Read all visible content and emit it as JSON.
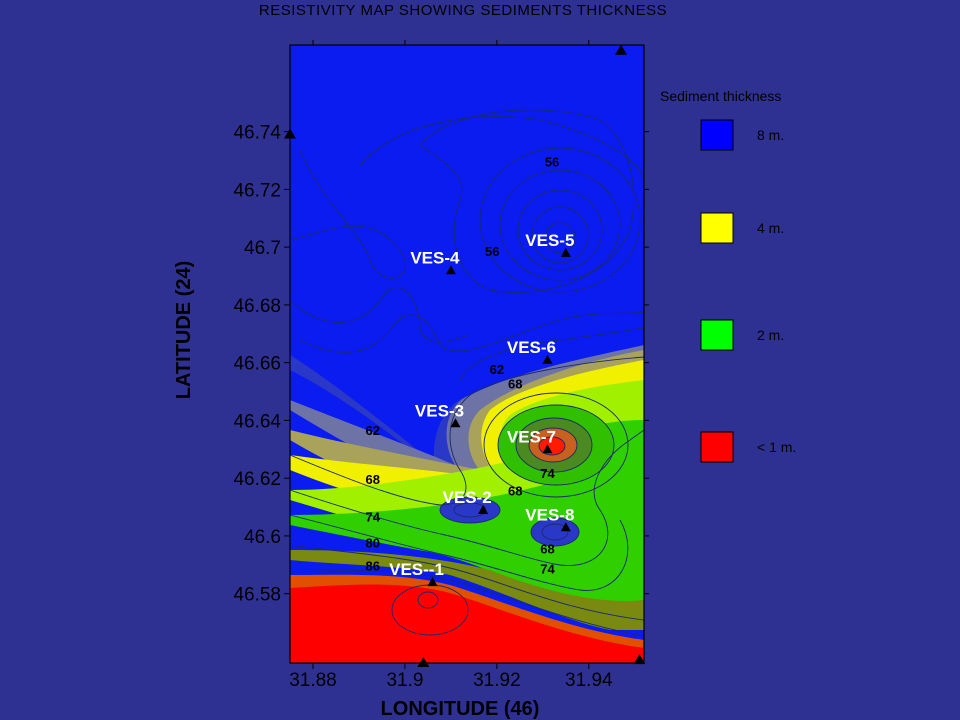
{
  "chart_data": {
    "type": "contour",
    "title": "RESISTIVITY MAP SHOWING SEDIMENTS THICKNESS",
    "xlabel": "LONGITUDE (46)",
    "ylabel": "LATITUDE (24)",
    "xlim": [
      31.875,
      31.952
    ],
    "ylim": [
      46.556,
      46.77
    ],
    "x_ticks": [
      31.88,
      31.9,
      31.92,
      31.94
    ],
    "x_tick_labels": [
      "31.88",
      "31.9",
      "31.92",
      "31.94"
    ],
    "y_ticks": [
      46.58,
      46.6,
      46.62,
      46.64,
      46.66,
      46.68,
      46.7,
      46.72,
      46.74
    ],
    "y_tick_labels": [
      "46.58",
      "46.6",
      "46.62",
      "46.64",
      "46.66",
      "46.68",
      "46.7",
      "46.72",
      "46.74"
    ],
    "stations": [
      {
        "name": "VES--1",
        "x": 31.906,
        "y": 46.584
      },
      {
        "name": "VES-2",
        "x": 31.917,
        "y": 46.609
      },
      {
        "name": "VES-3",
        "x": 31.911,
        "y": 46.639
      },
      {
        "name": "VES-4",
        "x": 31.91,
        "y": 46.692
      },
      {
        "name": "VES-5",
        "x": 31.935,
        "y": 46.698
      },
      {
        "name": "VES-6",
        "x": 31.931,
        "y": 46.661
      },
      {
        "name": "VES-7",
        "x": 31.931,
        "y": 46.63
      },
      {
        "name": "VES-8",
        "x": 31.935,
        "y": 46.603
      }
    ],
    "boundary_markers": [
      {
        "x": 31.875,
        "y": 46.739
      },
      {
        "x": 31.947,
        "y": 46.768
      },
      {
        "x": 31.904,
        "y": 46.556
      },
      {
        "x": 31.951,
        "y": 46.557
      }
    ],
    "contour_labels": [
      {
        "text": "56",
        "x": 31.932,
        "y": 46.728
      },
      {
        "text": "56",
        "x": 31.919,
        "y": 46.697
      },
      {
        "text": "62",
        "x": 31.92,
        "y": 46.656
      },
      {
        "text": "68",
        "x": 31.924,
        "y": 46.651
      },
      {
        "text": "62",
        "x": 31.893,
        "y": 46.635
      },
      {
        "text": "68",
        "x": 31.893,
        "y": 46.618
      },
      {
        "text": "74",
        "x": 31.893,
        "y": 46.605
      },
      {
        "text": "80",
        "x": 31.893,
        "y": 46.596
      },
      {
        "text": "86",
        "x": 31.893,
        "y": 46.588
      },
      {
        "text": "68",
        "x": 31.924,
        "y": 46.614
      },
      {
        "text": "74",
        "x": 31.931,
        "y": 46.62
      },
      {
        "text": "68",
        "x": 31.931,
        "y": 46.594
      },
      {
        "text": "74",
        "x": 31.931,
        "y": 46.587
      }
    ],
    "legend": {
      "title": "Sediment thickness",
      "placement": "right",
      "items": [
        {
          "label": "8 m.",
          "color": "#0000ff"
        },
        {
          "label": "4 m.",
          "color": "#ffff00"
        },
        {
          "label": "2 m.",
          "color": "#00ff00"
        },
        {
          "label": "< 1 m.",
          "color": "#ff0000"
        }
      ]
    },
    "background_color": "#2e3192"
  }
}
